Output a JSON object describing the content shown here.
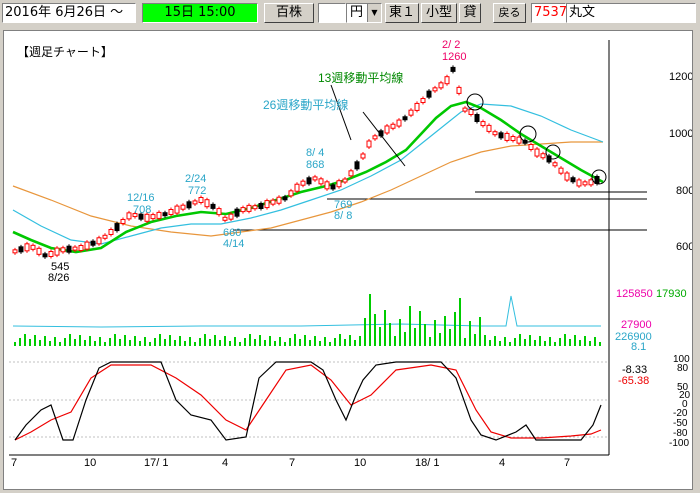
{
  "toolbar": {
    "date_range": "2016年 6月26日 ～",
    "period": "15日 15:00",
    "shares_unit": "百株",
    "price_field": "",
    "currency": "円",
    "market": "東１",
    "size": "小型",
    "margin": "貸",
    "back_label": "戻る",
    "code": "7537",
    "company": "丸文"
  },
  "chart": {
    "title": "【週足チャート】",
    "ma13_label": "13週移動平均線",
    "ma26_label": "26週移動平均線",
    "price_ticks": [
      "1200",
      "1000",
      "800",
      "600"
    ],
    "volume_ticks": [
      "125850",
      "17930",
      "27900",
      "226900",
      "8.1"
    ],
    "osc_ticks": [
      "100",
      "80",
      "50",
      "20",
      "0",
      "-20",
      "-50",
      "-80",
      "-100"
    ],
    "osc_values": [
      "-8.33",
      "-65.38"
    ],
    "x_ticks": [
      "7",
      "10",
      "17/ 1",
      "4",
      "7",
      "10",
      "18/ 1",
      "4",
      "7"
    ],
    "annotations": {
      "low1_price": "545",
      "low1_date": "8/26",
      "ann_1216_date": "12/16",
      "ann_1216_price": "708",
      "ann_224_date": "2/24",
      "ann_224_price": "772",
      "ann_414_price": "660",
      "ann_414_date": "4/14",
      "ann_84_date": "8/ 4",
      "ann_84_price": "868",
      "ann_88_price": "769",
      "ann_88_date": "8/ 8",
      "high_date": "2/ 2",
      "high_price": "1260"
    }
  },
  "colors": {
    "ma13": "#00c800",
    "ma26": "#33bfdf",
    "ma52": "#e8963c",
    "candle_up": "#ff0000",
    "volume": "#00cc00",
    "stoch_k": "#000000",
    "stoch_d": "#ee0000"
  }
}
